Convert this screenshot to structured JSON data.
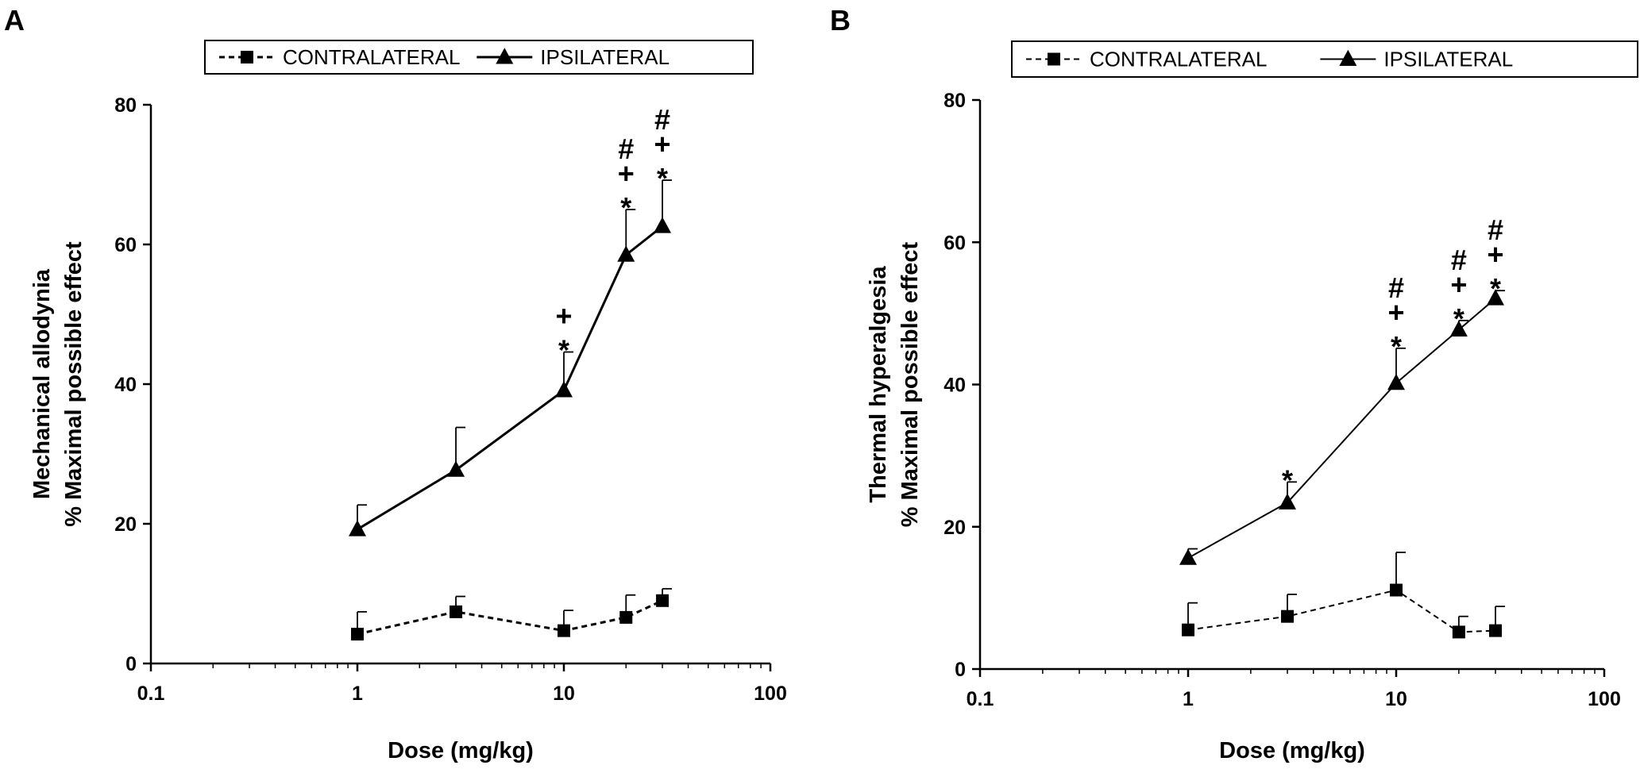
{
  "chart_data": [
    {
      "type": "line",
      "panel_label": "A",
      "xlabel": "Dose (mg/kg)",
      "ylabel": [
        "Mechanical allodynia",
        "% Maximal possible effect"
      ],
      "xscale": "log",
      "xlim": [
        0.1,
        100
      ],
      "xticks": [
        "0.1",
        "1",
        "10",
        "100"
      ],
      "xtick_values": [
        0.1,
        1,
        10,
        100
      ],
      "ylim": [
        0,
        80
      ],
      "yticks": [
        "0",
        "20",
        "40",
        "60",
        "80"
      ],
      "ytick_values": [
        0,
        20,
        40,
        60,
        80
      ],
      "legend_position": "top-center",
      "series": [
        {
          "name": "CONTRALATERAL",
          "marker": "square",
          "line_style": "dashed",
          "x": [
            1,
            3,
            10,
            20,
            30
          ],
          "values": [
            4.2,
            7.4,
            4.7,
            6.6,
            9.0
          ],
          "error": [
            3.2,
            2.2,
            2.9,
            3.2,
            1.7
          ]
        },
        {
          "name": "IPSILATERAL",
          "marker": "triangle",
          "line_style": "solid",
          "x": [
            1,
            3,
            10,
            20,
            30
          ],
          "values": [
            19.2,
            27.7,
            39.1,
            58.5,
            62.6
          ],
          "error": [
            3.5,
            6.1,
            5.5,
            6.5,
            6.6
          ]
        }
      ],
      "annotations": [
        {
          "x": 10,
          "lines": [
            "+",
            "*"
          ]
        },
        {
          "x": 20,
          "lines": [
            "#",
            "+",
            "*"
          ]
        },
        {
          "x": 30,
          "lines": [
            "#",
            "+",
            "*"
          ]
        }
      ]
    },
    {
      "type": "line",
      "panel_label": "B",
      "xlabel": "Dose (mg/kg)",
      "ylabel": [
        "Thermal hyperalgesia",
        "% Maximal possible effect"
      ],
      "xscale": "log",
      "xlim": [
        0.1,
        100
      ],
      "xticks": [
        "0.1",
        "1",
        "10",
        "100"
      ],
      "xtick_values": [
        0.1,
        1,
        10,
        100
      ],
      "ylim": [
        0,
        80
      ],
      "yticks": [
        "0",
        "20",
        "40",
        "60",
        "80"
      ],
      "ytick_values": [
        0,
        20,
        40,
        60,
        80
      ],
      "legend_position": "top-center",
      "series": [
        {
          "name": "CONTRALATERAL",
          "marker": "square",
          "line_style": "dashed",
          "x": [
            1,
            3,
            10,
            20,
            30
          ],
          "values": [
            5.5,
            7.4,
            11.1,
            5.2,
            5.4
          ],
          "error": [
            3.8,
            3.1,
            5.3,
            2.2,
            3.4
          ]
        },
        {
          "name": "IPSILATERAL",
          "marker": "triangle",
          "line_style": "solid",
          "x": [
            1,
            3,
            10,
            20,
            30
          ],
          "values": [
            15.6,
            23.4,
            40.2,
            47.7,
            52.1
          ],
          "error": [
            1.3,
            2.9,
            4.9,
            1.3,
            1.1
          ]
        }
      ],
      "annotations": [
        {
          "x": 3,
          "lines": [
            "*"
          ]
        },
        {
          "x": 10,
          "lines": [
            "#",
            "+",
            "*"
          ]
        },
        {
          "x": 20,
          "lines": [
            "#",
            "+",
            "*"
          ]
        },
        {
          "x": 30,
          "lines": [
            "#",
            "+",
            "*"
          ]
        }
      ]
    }
  ]
}
